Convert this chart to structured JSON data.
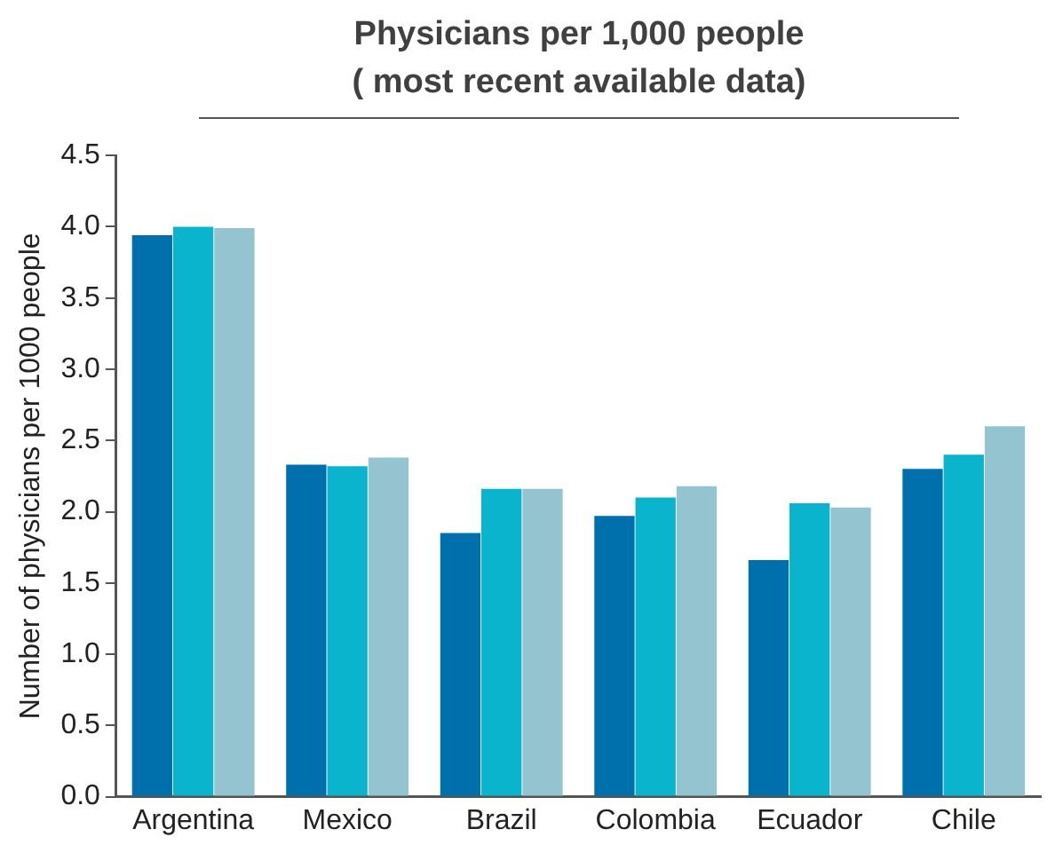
{
  "chart_data": {
    "type": "bar",
    "title": "Physicians per 1,000 people\n( most recent available data)",
    "ylabel": "Number of physicians per 1000 people",
    "categories": [
      "Argentina",
      "Mexico",
      "Brazil",
      "Colombia",
      "Ecuador",
      "Chile"
    ],
    "series": [
      {
        "color": "#0070ad",
        "values": [
          3.94,
          2.33,
          1.85,
          1.97,
          1.66,
          2.3
        ]
      },
      {
        "color": "#0ab4cc",
        "values": [
          4.0,
          2.32,
          2.16,
          2.1,
          2.06,
          2.4
        ]
      },
      {
        "color": "#94c4d0",
        "values": [
          3.99,
          2.38,
          2.16,
          2.18,
          2.03,
          2.6
        ]
      }
    ],
    "ylim": [
      0,
      4.5
    ],
    "yticks": [
      {
        "value": 0,
        "label": "0.0"
      },
      {
        "value": 0.5,
        "label": "0.5"
      },
      {
        "value": 1,
        "label": "1.0"
      },
      {
        "value": 1.5,
        "label": "1.5"
      },
      {
        "value": 2,
        "label": "2.0"
      },
      {
        "value": 2.5,
        "label": "2.5"
      },
      {
        "value": 3,
        "label": "3.0"
      },
      {
        "value": 3.5,
        "label": "3.5"
      },
      {
        "value": 4,
        "label": "4.0"
      },
      {
        "value": 4.5,
        "label": "4.5"
      }
    ],
    "grid": false,
    "legend": false
  }
}
